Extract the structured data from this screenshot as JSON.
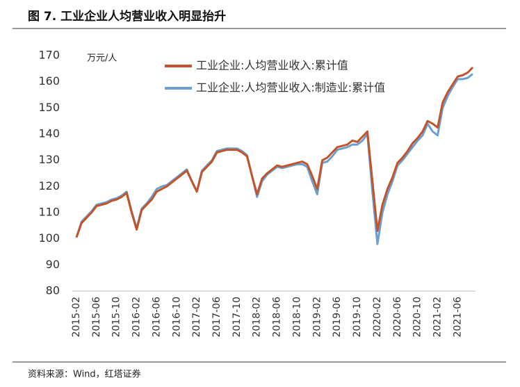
{
  "chart_data": {
    "type": "line",
    "title": "图 7. 工业企业人均营业收入明显抬升",
    "y_label": "万元/人",
    "source": "资料来源：Wind，红塔证券",
    "categories": [
      "2015-02",
      null,
      null,
      null,
      "2015-06",
      null,
      null,
      null,
      "2015-10",
      null,
      null,
      null,
      "2016-02",
      null,
      null,
      null,
      "2016-06",
      null,
      null,
      null,
      "2016-10",
      null,
      null,
      null,
      "2017-02",
      null,
      null,
      null,
      "2017-06",
      null,
      null,
      null,
      "2017-10",
      null,
      null,
      null,
      "2018-02",
      null,
      null,
      null,
      "2018-06",
      null,
      null,
      null,
      "2018-10",
      null,
      null,
      null,
      "2019-02",
      null,
      null,
      null,
      "2019-06",
      null,
      null,
      null,
      "2019-10",
      null,
      null,
      null,
      "2020-02",
      null,
      null,
      null,
      "2020-06",
      null,
      null,
      null,
      "2020-10",
      null,
      null,
      null,
      "2021-02",
      null,
      null,
      null,
      "2021-06",
      null,
      null,
      null
    ],
    "series": [
      {
        "name": "工业企业:人均营业收入:累计值",
        "color": "#c4532a",
        "values": [
          100.5,
          106,
          108,
          110,
          112.5,
          113,
          113.5,
          114.5,
          115,
          116,
          117.5,
          110,
          103.5,
          111,
          113,
          115,
          118,
          119,
          120,
          121.5,
          123,
          124.5,
          126,
          122,
          118,
          125.5,
          127.5,
          129.5,
          133,
          133.5,
          134,
          134,
          134,
          133,
          131.5,
          124,
          117,
          123,
          125,
          126.5,
          128,
          127.5,
          128,
          128.5,
          129,
          129.5,
          128.5,
          124,
          119,
          130,
          131,
          133,
          135,
          135.5,
          136,
          137.5,
          137,
          139,
          141,
          122,
          103,
          113,
          119,
          123.5,
          129,
          131,
          133.5,
          136.5,
          138.5,
          141,
          145,
          144,
          142.5,
          152,
          156,
          159,
          162,
          162.5,
          163.5,
          165.5
        ]
      },
      {
        "name": "工业企业:人均营业收入:制造业:累计值",
        "color": "#6a9fd0",
        "values": [
          100.5,
          106.5,
          108.5,
          110.5,
          113,
          113.5,
          114,
          115,
          115.5,
          116.5,
          118,
          110.5,
          104,
          111.5,
          113.5,
          116,
          119,
          120,
          120.5,
          122,
          123.5,
          125,
          126.5,
          122,
          118,
          126,
          128,
          130,
          133.5,
          134,
          134.5,
          134.5,
          134.5,
          133.5,
          132,
          124,
          116,
          122,
          124.5,
          126,
          127.5,
          127,
          127.5,
          128,
          128.5,
          128.5,
          127.5,
          122,
          117,
          129,
          129.5,
          131.5,
          134,
          134.5,
          135,
          136,
          136,
          137.5,
          140,
          118,
          98,
          110,
          117,
          122,
          128,
          130,
          132.5,
          135,
          137.5,
          139.5,
          144,
          141,
          139.5,
          150,
          154.5,
          158,
          161,
          161,
          161.5,
          163
        ]
      }
    ],
    "ylim": [
      80,
      170
    ],
    "yticks": [
      80,
      90,
      100,
      110,
      120,
      130,
      140,
      150,
      160,
      170
    ]
  }
}
